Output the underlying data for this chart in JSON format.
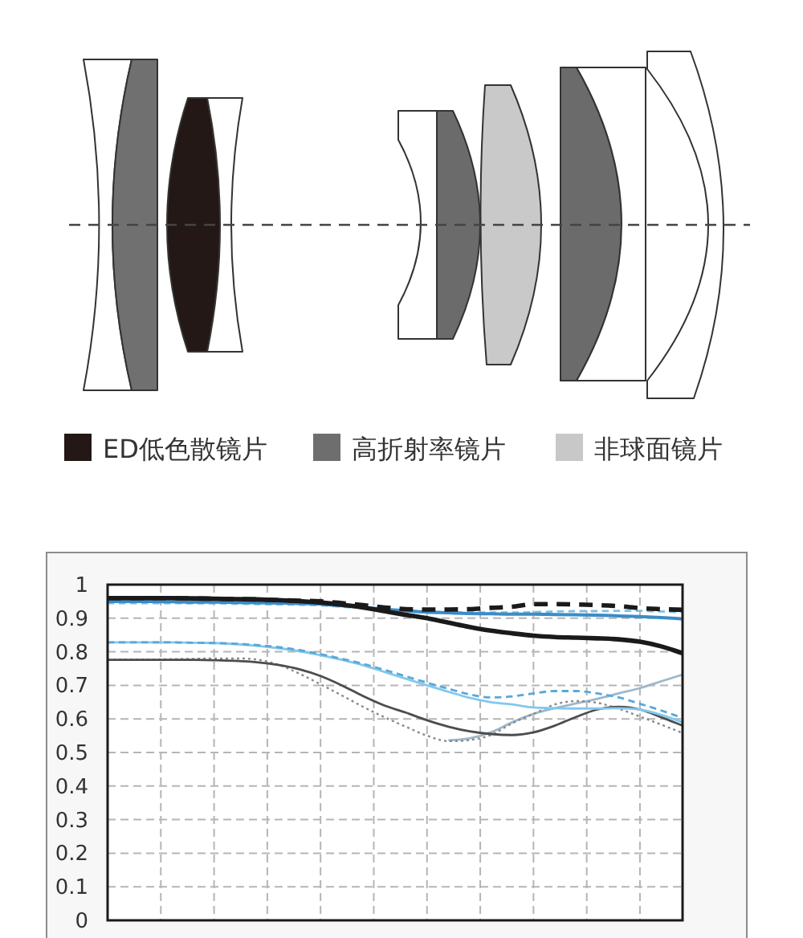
{
  "chart_data": [
    {
      "type": "other",
      "annotations": [
        "ED低色散镜片",
        "高折射率镜片",
        "非球面镜片"
      ]
    },
    {
      "type": "line",
      "categories": [
        null,
        null,
        null,
        null,
        null,
        null,
        null,
        null,
        null,
        null,
        null,
        null,
        null,
        null,
        null,
        null,
        null,
        null,
        null,
        null,
        null,
        null,
        null,
        null,
        null,
        null,
        null,
        null
      ],
      "ylim": [
        0,
        1
      ],
      "yticks": [
        0,
        0.1,
        0.2,
        0.3,
        0.4,
        0.5,
        0.6,
        0.7,
        0.8,
        0.9,
        1
      ],
      "grid": true,
      "series": [
        {
          "color": "#9cb8cc",
          "line_style": "solid",
          "values": [
            null,
            null,
            null,
            null,
            null,
            null,
            null,
            null,
            null,
            null,
            null,
            null,
            null,
            null,
            null,
            null,
            0.536,
            0.542,
            0.56,
            0.59,
            0.615,
            0.632,
            0.646,
            0.66,
            0.676,
            0.692,
            0.712,
            0.732
          ]
        },
        {
          "color": "#8a8a8a",
          "line_style": "dotted",
          "values": [
            0.776,
            0.777,
            0.777,
            0.778,
            0.779,
            0.78,
            0.78,
            0.777,
            0.762,
            0.735,
            0.703,
            0.67,
            0.636,
            0.605,
            0.577,
            0.55,
            0.534,
            0.537,
            0.552,
            0.587,
            0.615,
            0.643,
            0.653,
            0.648,
            0.63,
            0.607,
            0.583,
            0.558
          ]
        },
        {
          "color": "#4d4d4d",
          "line_style": "solid",
          "values": [
            0.776,
            0.776,
            0.776,
            0.776,
            0.776,
            0.775,
            0.773,
            0.769,
            0.761,
            0.748,
            0.728,
            0.7,
            0.668,
            0.64,
            0.619,
            0.596,
            0.577,
            0.563,
            0.555,
            0.552,
            0.56,
            0.58,
            0.606,
            0.628,
            0.636,
            0.628,
            0.605,
            0.58
          ]
        },
        {
          "color": "#82c8ec",
          "line_style": "solid",
          "values": [
            0.828,
            0.828,
            0.828,
            0.828,
            0.827,
            0.826,
            0.823,
            0.818,
            0.811,
            0.802,
            0.79,
            0.776,
            0.76,
            0.74,
            0.72,
            0.7,
            0.681,
            0.663,
            0.65,
            0.643,
            0.634,
            0.632,
            0.631,
            0.631,
            0.632,
            0.628,
            0.612,
            0.59
          ]
        },
        {
          "color": "#5aa8d8",
          "line_style": "dashed",
          "values": [
            0.828,
            0.828,
            0.828,
            0.828,
            0.827,
            0.826,
            0.824,
            0.82,
            0.814,
            0.805,
            0.793,
            0.779,
            0.764,
            0.746,
            0.727,
            0.708,
            0.69,
            0.673,
            0.664,
            0.667,
            0.676,
            0.683,
            0.683,
            0.676,
            0.664,
            0.645,
            0.625,
            0.603
          ]
        },
        {
          "color": "#7cc0e6",
          "line_style": "dashed",
          "values": [
            0.945,
            0.945,
            0.945,
            0.945,
            0.944,
            0.944,
            0.943,
            0.942,
            0.941,
            0.94,
            0.938,
            0.934,
            0.93,
            0.926,
            0.923,
            0.92,
            0.918,
            0.917,
            0.917,
            0.917,
            0.918,
            0.92,
            0.921,
            0.921,
            0.922,
            0.922,
            0.92,
            0.918
          ]
        },
        {
          "color": "#3a8cc8",
          "line_style": "solid",
          "values": [
            0.95,
            0.95,
            0.95,
            0.949,
            0.948,
            0.948,
            0.947,
            0.946,
            0.945,
            0.944,
            0.942,
            0.937,
            0.932,
            0.927,
            0.922,
            0.918,
            0.916,
            0.914,
            0.913,
            0.912,
            0.912,
            0.911,
            0.91,
            0.909,
            0.907,
            0.905,
            0.902,
            0.898
          ]
        },
        {
          "color": "#1a1a1a",
          "line_style": "dashed",
          "values": [
            0.96,
            0.96,
            0.96,
            0.96,
            0.959,
            0.958,
            0.957,
            0.956,
            0.954,
            0.952,
            0.95,
            0.945,
            0.939,
            0.932,
            0.927,
            0.926,
            0.926,
            0.927,
            0.931,
            0.934,
            0.942,
            0.942,
            0.941,
            0.939,
            0.936,
            0.93,
            0.927,
            0.925
          ]
        },
        {
          "color": "#1a1a1a",
          "line_style": "solid",
          "values": [
            0.96,
            0.96,
            0.96,
            0.96,
            0.959,
            0.958,
            0.957,
            0.956,
            0.954,
            0.951,
            0.947,
            0.94,
            0.932,
            0.921,
            0.91,
            0.9,
            0.887,
            0.874,
            0.863,
            0.855,
            0.848,
            0.844,
            0.842,
            0.84,
            0.837,
            0.83,
            0.816,
            0.796
          ]
        }
      ]
    }
  ]
}
